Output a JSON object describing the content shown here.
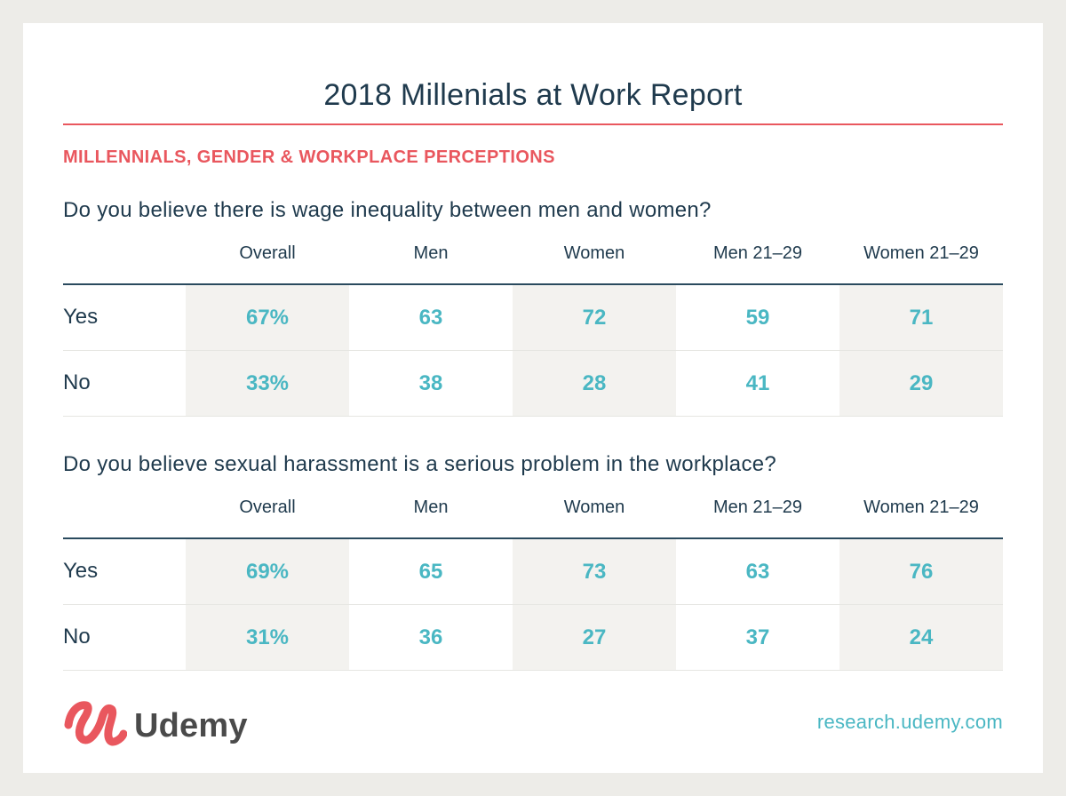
{
  "title": "2018 Millenials at Work Report",
  "section_label": "MILLENNIALS, GENDER & WORKPLACE PERCEPTIONS",
  "columns": [
    "Overall",
    "Men",
    "Women",
    "Men 21–29",
    "Women 21–29"
  ],
  "tables": [
    {
      "question": "Do you believe there is wage inequality between men and women?",
      "rows": [
        {
          "label": "Yes",
          "values": [
            "67%",
            "63",
            "72",
            "59",
            "71"
          ]
        },
        {
          "label": "No",
          "values": [
            "33%",
            "38",
            "28",
            "41",
            "29"
          ]
        }
      ]
    },
    {
      "question": "Do you believe sexual harassment is a serious problem in the workplace?",
      "rows": [
        {
          "label": "Yes",
          "values": [
            "69%",
            "65",
            "73",
            "63",
            "76"
          ]
        },
        {
          "label": "No",
          "values": [
            "31%",
            "36",
            "27",
            "37",
            "24"
          ]
        }
      ]
    }
  ],
  "footer": {
    "brand": "Udemy",
    "logo_icon": "udemy-u-logo",
    "site": "research.udemy.com"
  },
  "colors": {
    "accent_red": "#e9575e",
    "value_teal": "#4ab7c3",
    "text_navy": "#1f3a4d"
  }
}
